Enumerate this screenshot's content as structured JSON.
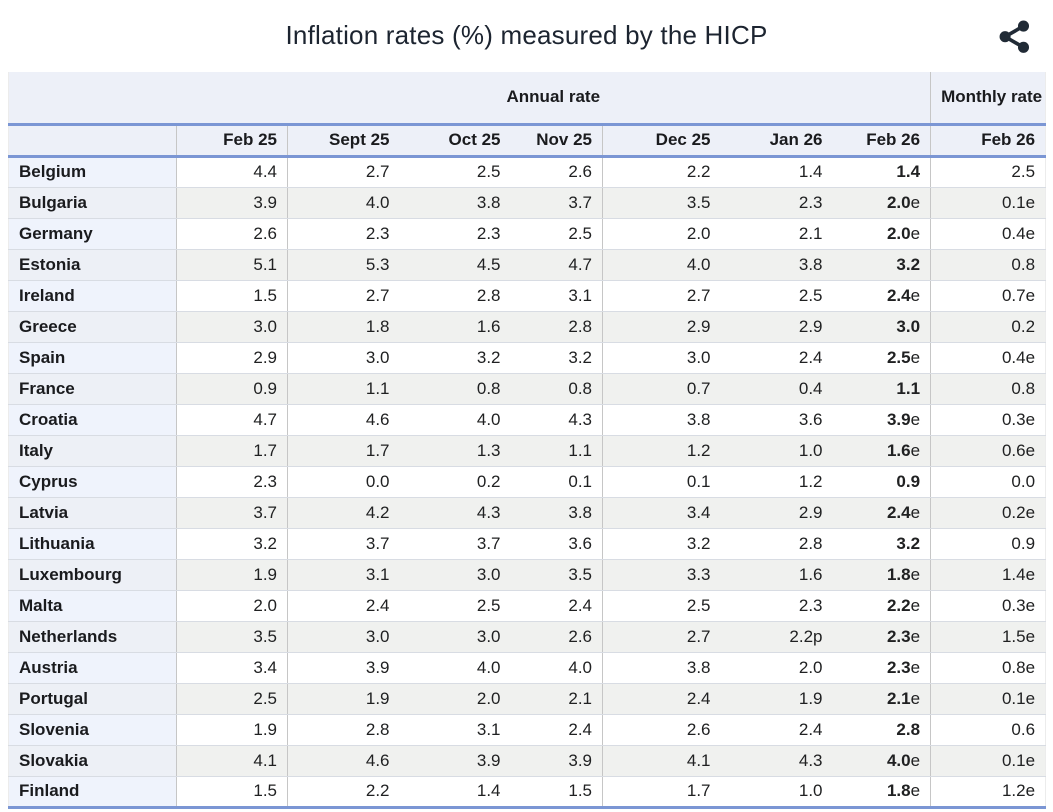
{
  "page": {
    "title": "Inflation rates (%) measured by the HICP"
  },
  "toolbar": {
    "share_icon_color": "#212b36"
  },
  "colors": {
    "accent_border_blue": "#7b96d4",
    "header_bg": "#edf0f8",
    "stripe_gray": "#f0f1ef",
    "country_col_bg_odd": "#eff3fc",
    "country_col_bg_even": "#edf0f6",
    "row_separator": "#d8dce3",
    "column_separator": "#c6c6c6"
  },
  "chart_data": {
    "type": "table",
    "title": "Inflation rates (%) measured by the HICP",
    "column_groups": [
      {
        "label": "Annual rate",
        "span": 7
      },
      {
        "label": "Monthly rate",
        "span": 1
      }
    ],
    "columns": [
      "Feb 25",
      "Sept 25",
      "Oct 25",
      "Nov 25",
      "Dec 25",
      "Jan 26",
      "Feb 26",
      "Feb 26"
    ],
    "emphasized_column_index": 6,
    "rows": [
      {
        "country": "Belgium",
        "values": [
          "4.4",
          "2.7",
          "2.5",
          "2.6",
          "2.2",
          "1.4",
          "1.4",
          "2.5"
        ]
      },
      {
        "country": "Bulgaria",
        "values": [
          "3.9",
          "4.0",
          "3.8",
          "3.7",
          "3.5",
          "2.3",
          "2.0e",
          "0.1e"
        ]
      },
      {
        "country": "Germany",
        "values": [
          "2.6",
          "2.3",
          "2.3",
          "2.5",
          "2.0",
          "2.1",
          "2.0e",
          "0.4e"
        ]
      },
      {
        "country": "Estonia",
        "values": [
          "5.1",
          "5.3",
          "4.5",
          "4.7",
          "4.0",
          "3.8",
          "3.2",
          "0.8"
        ]
      },
      {
        "country": "Ireland",
        "values": [
          "1.5",
          "2.7",
          "2.8",
          "3.1",
          "2.7",
          "2.5",
          "2.4e",
          "0.7e"
        ]
      },
      {
        "country": "Greece",
        "values": [
          "3.0",
          "1.8",
          "1.6",
          "2.8",
          "2.9",
          "2.9",
          "3.0",
          "0.2"
        ]
      },
      {
        "country": "Spain",
        "values": [
          "2.9",
          "3.0",
          "3.2",
          "3.2",
          "3.0",
          "2.4",
          "2.5e",
          "0.4e"
        ]
      },
      {
        "country": "France",
        "values": [
          "0.9",
          "1.1",
          "0.8",
          "0.8",
          "0.7",
          "0.4",
          "1.1",
          "0.8"
        ]
      },
      {
        "country": "Croatia",
        "values": [
          "4.7",
          "4.6",
          "4.0",
          "4.3",
          "3.8",
          "3.6",
          "3.9e",
          "0.3e"
        ]
      },
      {
        "country": "Italy",
        "values": [
          "1.7",
          "1.7",
          "1.3",
          "1.1",
          "1.2",
          "1.0",
          "1.6e",
          "0.6e"
        ]
      },
      {
        "country": "Cyprus",
        "values": [
          "2.3",
          "0.0",
          "0.2",
          "0.1",
          "0.1",
          "1.2",
          "0.9",
          "0.0"
        ]
      },
      {
        "country": "Latvia",
        "values": [
          "3.7",
          "4.2",
          "4.3",
          "3.8",
          "3.4",
          "2.9",
          "2.4e",
          "0.2e"
        ]
      },
      {
        "country": "Lithuania",
        "values": [
          "3.2",
          "3.7",
          "3.7",
          "3.6",
          "3.2",
          "2.8",
          "3.2",
          "0.9"
        ]
      },
      {
        "country": "Luxembourg",
        "values": [
          "1.9",
          "3.1",
          "3.0",
          "3.5",
          "3.3",
          "1.6",
          "1.8e",
          "1.4e"
        ]
      },
      {
        "country": "Malta",
        "values": [
          "2.0",
          "2.4",
          "2.5",
          "2.4",
          "2.5",
          "2.3",
          "2.2e",
          "0.3e"
        ]
      },
      {
        "country": "Netherlands",
        "values": [
          "3.5",
          "3.0",
          "3.0",
          "2.6",
          "2.7",
          "2.2p",
          "2.3e",
          "1.5e"
        ]
      },
      {
        "country": "Austria",
        "values": [
          "3.4",
          "3.9",
          "4.0",
          "4.0",
          "3.8",
          "2.0",
          "2.3e",
          "0.8e"
        ]
      },
      {
        "country": "Portugal",
        "values": [
          "2.5",
          "1.9",
          "2.0",
          "2.1",
          "2.4",
          "1.9",
          "2.1e",
          "0.1e"
        ]
      },
      {
        "country": "Slovenia",
        "values": [
          "1.9",
          "2.8",
          "3.1",
          "2.4",
          "2.6",
          "2.4",
          "2.8",
          "0.6"
        ]
      },
      {
        "country": "Slovakia",
        "values": [
          "4.1",
          "4.6",
          "3.9",
          "3.9",
          "4.1",
          "4.3",
          "4.0e",
          "0.1e"
        ]
      },
      {
        "country": "Finland",
        "values": [
          "1.5",
          "2.2",
          "1.4",
          "1.5",
          "1.7",
          "1.0",
          "1.8e",
          "1.2e"
        ]
      }
    ]
  }
}
